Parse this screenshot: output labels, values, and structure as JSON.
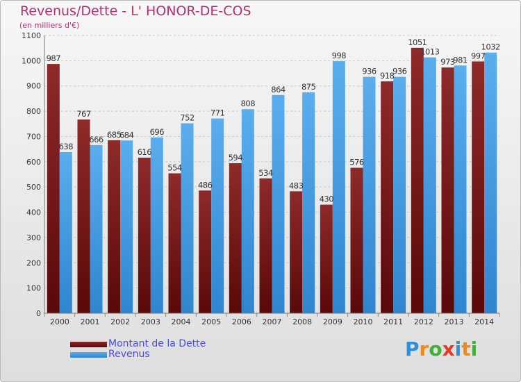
{
  "title": "Revenus/Dette - L' HONOR-DE-COS",
  "subtitle": "(en milliers d'€)",
  "colors": {
    "dette": "#7a1c1c",
    "revenus": "#4aa0e6",
    "title": "#b0306e",
    "legend_text": "#4a4adb"
  },
  "legend": [
    {
      "label": "Montant de la Dette",
      "color": "#7a1c1c"
    },
    {
      "label": "Revenus",
      "color": "#4aa0e6"
    }
  ],
  "logo": {
    "text": "Proxiti",
    "letters": [
      {
        "ch": "P",
        "color": "#2f8fd8"
      },
      {
        "ch": "r",
        "color": "#f08a1c"
      },
      {
        "ch": "o",
        "color": "#3fae3a"
      },
      {
        "ch": "x",
        "color": "#e03a2a"
      },
      {
        "ch": "i",
        "color": "#2f8fd8"
      },
      {
        "ch": "t",
        "color": "#f08a1c"
      },
      {
        "ch": "i",
        "color": "#3fae3a"
      }
    ]
  },
  "chart_data": {
    "type": "bar",
    "categories": [
      "2000",
      "2001",
      "2002",
      "2003",
      "2004",
      "2005",
      "2006",
      "2007",
      "2008",
      "2009",
      "2010",
      "2011",
      "2012",
      "2013",
      "2014"
    ],
    "series": [
      {
        "name": "Montant de la Dette",
        "values": [
          987,
          767,
          685,
          616,
          554,
          486,
          594,
          534,
          483,
          430,
          576,
          918,
          1051,
          973,
          997
        ]
      },
      {
        "name": "Revenus",
        "values": [
          638,
          666,
          684,
          696,
          752,
          771,
          808,
          864,
          875,
          998,
          936,
          936,
          1013,
          981,
          1032
        ]
      }
    ],
    "ylim": [
      0,
      1100
    ],
    "yticks": [
      0,
      100,
      200,
      300,
      400,
      500,
      600,
      700,
      800,
      900,
      1000,
      1100
    ],
    "grid": true,
    "legend_position": "bottom-left"
  }
}
